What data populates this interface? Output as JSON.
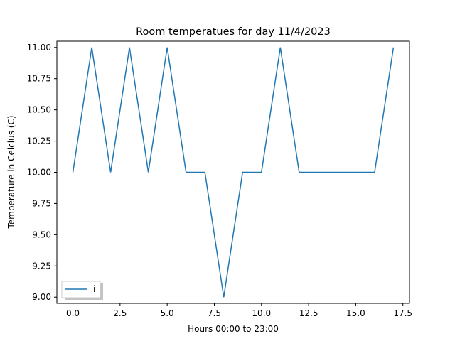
{
  "chart_data": {
    "type": "line",
    "title": "Room temperatues for day 11/4/2023",
    "xlabel": "Hours 00:00 to 23:00",
    "ylabel": "Temperature in Celcius (C)",
    "xlim": [
      -0.85,
      17.85
    ],
    "ylim": [
      8.95,
      11.05
    ],
    "x_ticks": [
      0.0,
      2.5,
      5.0,
      7.5,
      10.0,
      12.5,
      15.0,
      17.5
    ],
    "x_tick_labels": [
      "0.0",
      "2.5",
      "5.0",
      "7.5",
      "10.0",
      "12.5",
      "15.0",
      "17.5"
    ],
    "y_ticks": [
      9.0,
      9.25,
      9.5,
      9.75,
      10.0,
      10.25,
      10.5,
      10.75,
      11.0
    ],
    "y_tick_labels": [
      "9.00",
      "9.25",
      "9.50",
      "9.75",
      "10.00",
      "10.25",
      "10.50",
      "10.75",
      "11.00"
    ],
    "grid": false,
    "legend_position": "lower-left",
    "series": [
      {
        "name": "i",
        "color": "#1f77b4",
        "x": [
          0,
          1,
          2,
          3,
          4,
          5,
          6,
          7,
          8,
          9,
          10,
          11,
          12,
          13,
          14,
          15,
          16,
          17
        ],
        "y": [
          10,
          11,
          10,
          11,
          10,
          11,
          10,
          10,
          9,
          10,
          10,
          11,
          10,
          10,
          10,
          10,
          10,
          11
        ]
      }
    ]
  }
}
